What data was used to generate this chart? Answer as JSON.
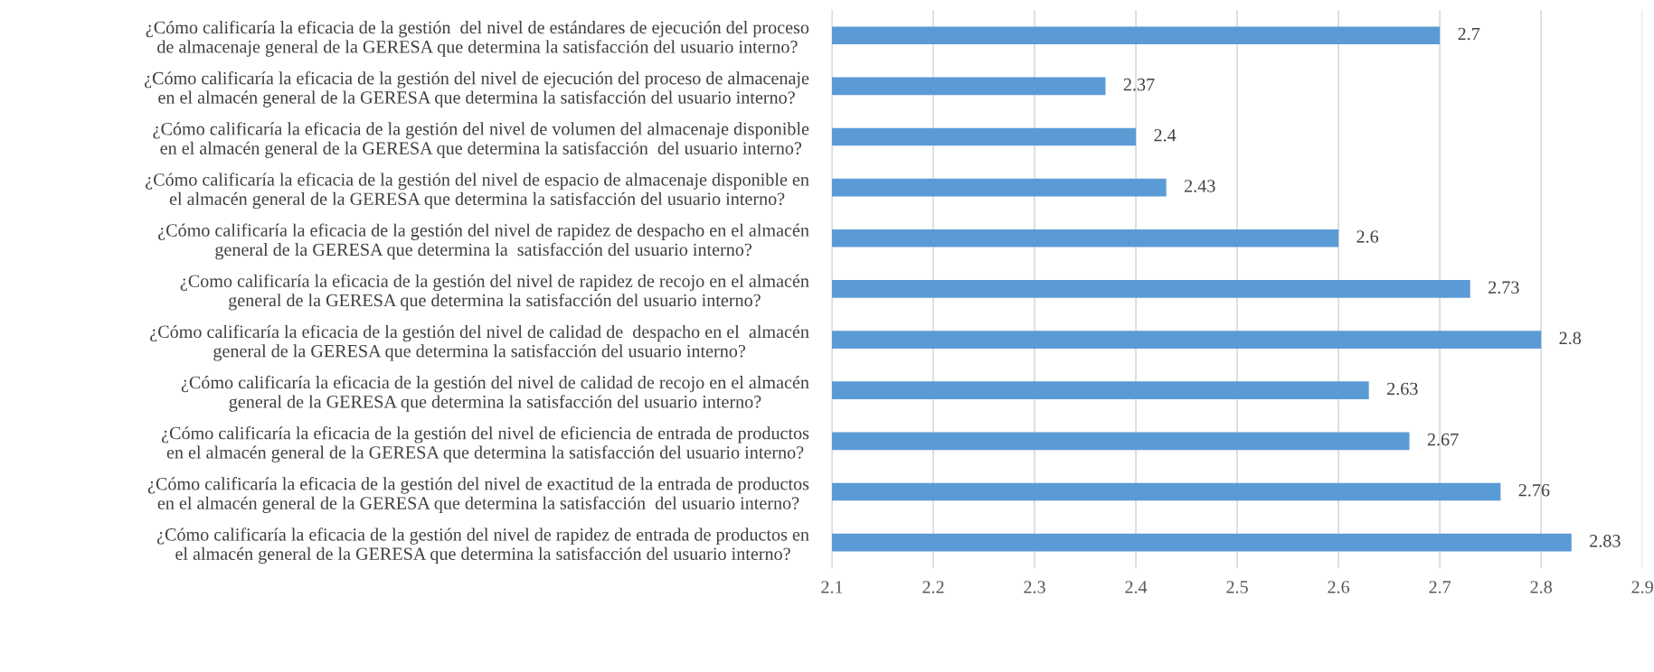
{
  "chart_data": {
    "type": "bar",
    "orientation": "horizontal",
    "categories": [
      "¿Cómo calificaría la eficacia de la gestión  del nivel de estándares de ejecución del proceso\nde almacenaje general de la GERESA que determina la satisfacción del usuario interno?",
      "¿Cómo calificaría la eficacia de la gestión del nivel de ejecución del proceso de almacenaje\nen el almacén general de la GERESA que determina la satisfacción del usuario interno?",
      "¿Cómo calificaría la eficacia de la gestión del nivel de volumen del almacenaje disponible\nen el almacén general de la GERESA que determina la satisfacción  del usuario interno?",
      "¿Cómo calificaría la eficacia de la gestión del nivel de espacio de almacenaje disponible en\nel almacén general de la GERESA que determina la satisfacción del usuario interno?",
      "¿Cómo calificaría la eficacia de la gestión del nivel de rapidez de despacho en el almacén\ngeneral de la GERESA que determina la  satisfacción del usuario interno?",
      "¿Como calificaría la eficacia de la gestión del nivel de rapidez de recojo en el almacén\ngeneral de la GERESA que determina la satisfacción del usuario interno?",
      "¿Cómo calificaría la eficacia de la gestión del nivel de calidad de  despacho en el  almacén\ngeneral de la GERESA que determina la satisfacción del usuario interno?",
      "¿Cómo calificaría la eficacia de la gestión del nivel de calidad de recojo en el almacén\ngeneral de la GERESA que determina la satisfacción del usuario interno?",
      "¿Cómo calificaría la eficacia de la gestión del nivel de eficiencia de entrada de productos\nen el almacén general de la GERESA que determina la satisfacción del usuario interno?",
      "¿Cómo calificaría la eficacia de la gestión del nivel de exactitud de la entrada de productos\nen el almacén general de la GERESA que determina la satisfacción  del usuario interno?",
      "¿Cómo calificaría la eficacia de la gestión del nivel de rapidez de entrada de productos en\nel almacén general de la GERESA que determina la satisfacción del usuario interno?"
    ],
    "values": [
      2.7,
      2.37,
      2.4,
      2.43,
      2.6,
      2.73,
      2.8,
      2.63,
      2.67,
      2.76,
      2.83
    ],
    "color": "#5b9bd5",
    "xlim": [
      2.1,
      2.9
    ],
    "xticks": [
      2.1,
      2.2,
      2.3,
      2.4,
      2.5,
      2.6,
      2.7,
      2.8,
      2.9
    ],
    "grid": "x",
    "data_labels": true
  }
}
